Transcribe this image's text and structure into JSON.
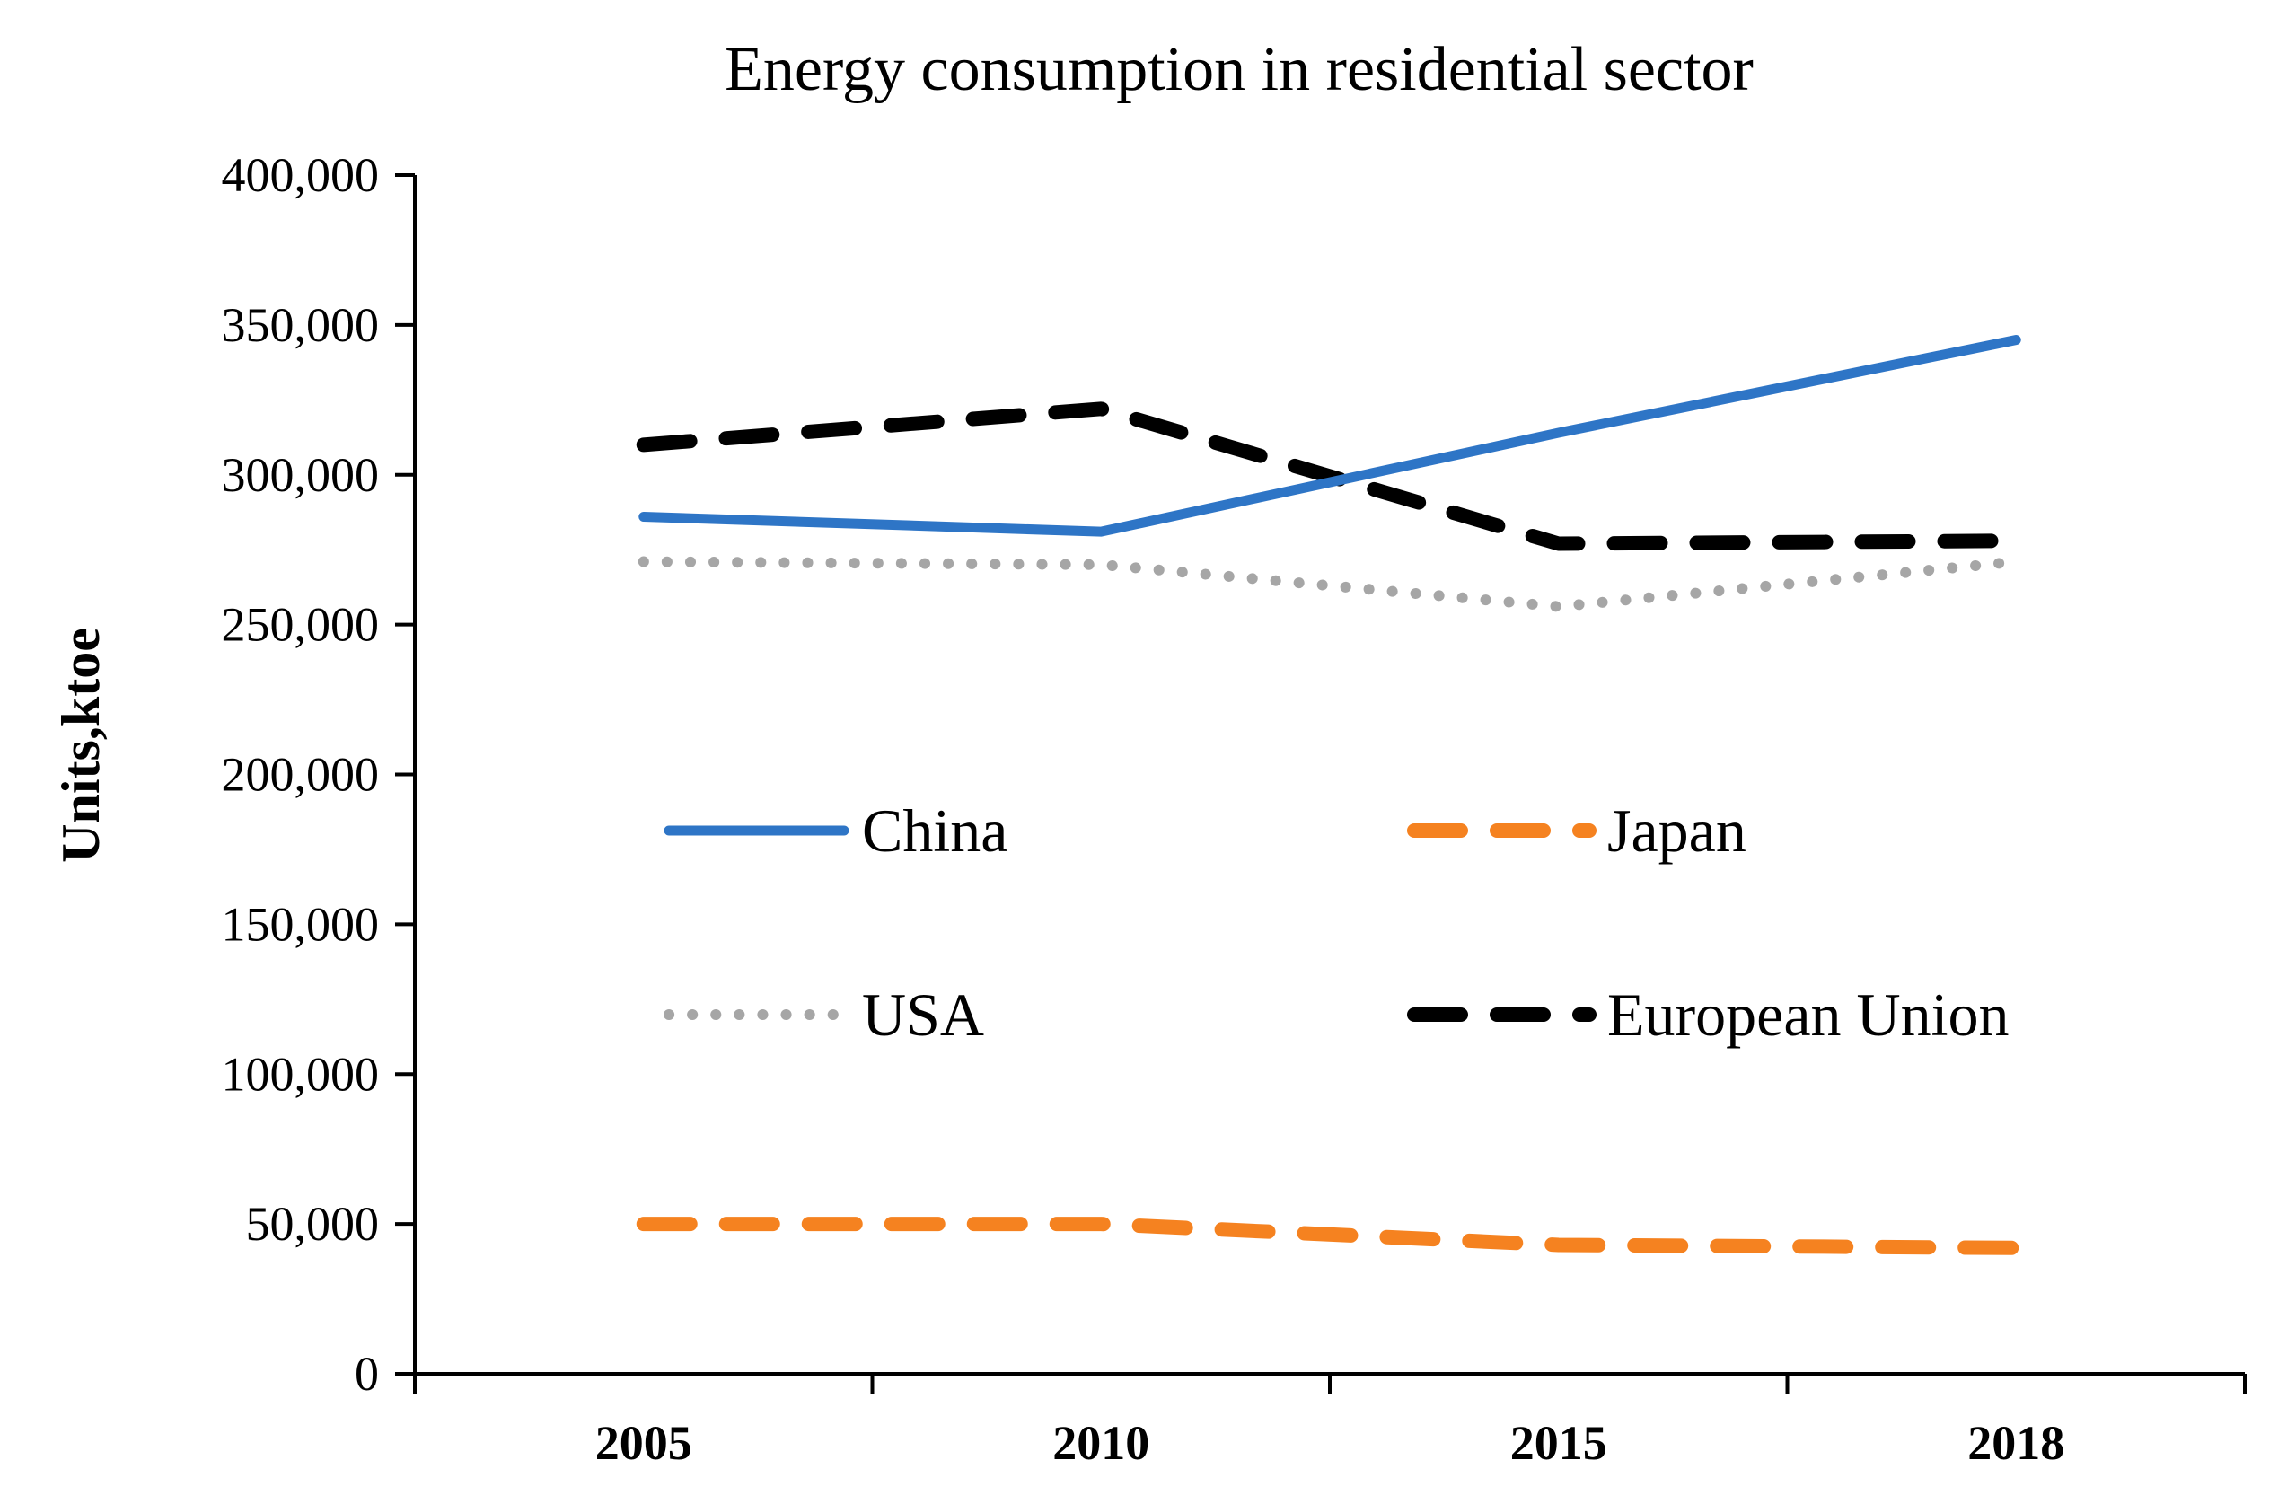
{
  "chart_data": {
    "type": "line",
    "title": "Energy consumption in residential sector",
    "xlabel": "",
    "ylabel": "Units,ktoe",
    "categories": [
      "2005",
      "2010",
      "2015",
      "2018"
    ],
    "ylim": [
      0,
      400000
    ],
    "y_ticks": [
      0,
      50000,
      100000,
      150000,
      200000,
      250000,
      300000,
      350000,
      400000
    ],
    "y_tick_labels": [
      "0",
      "50,000",
      "100,000",
      "150,000",
      "200,000",
      "250,000",
      "300,000",
      "350,000",
      "400,000"
    ],
    "grid": false,
    "legend_position": "center",
    "series": [
      {
        "name": "China",
        "values": [
          286000,
          281000,
          314000,
          345000
        ],
        "color": "#2E75C6",
        "style": "solid"
      },
      {
        "name": "Japan",
        "values": [
          50000,
          50000,
          43000,
          42000
        ],
        "color": "#F58220",
        "style": "dashed"
      },
      {
        "name": "USA",
        "values": [
          271000,
          270000,
          256000,
          271000
        ],
        "color": "#A6A6A6",
        "style": "dotted"
      },
      {
        "name": "European Union",
        "values": [
          310000,
          322000,
          277000,
          278000
        ],
        "color": "#000000",
        "style": "dashed"
      }
    ]
  }
}
